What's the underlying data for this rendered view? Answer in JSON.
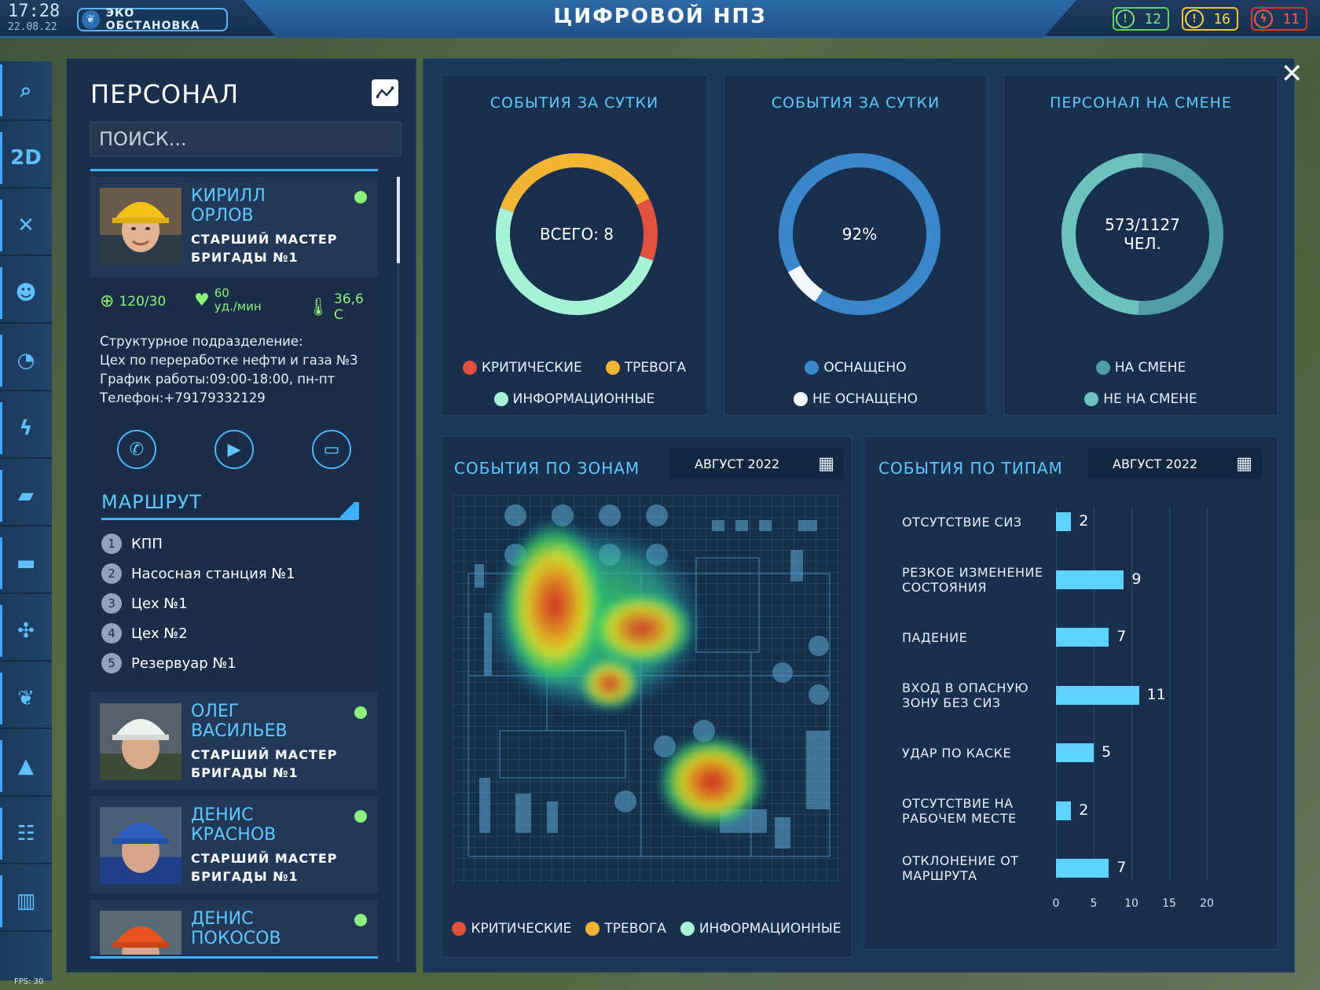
{
  "header": {
    "time": "17:28",
    "date": "22.08.22",
    "eco_button": "ЭКО ОБСТАНОВКА",
    "app_title": "ЦИФРОВОЙ НПЗ",
    "badges": [
      {
        "name": "info-badge",
        "value": "12",
        "color": "#5fd35a"
      },
      {
        "name": "warning-badge",
        "value": "16",
        "color": "#f2c230"
      },
      {
        "name": "critical-badge",
        "value": "11",
        "color": "#e2352e"
      }
    ]
  },
  "rail": {
    "items": [
      {
        "name": "search-icon",
        "glyph": "⌕"
      },
      {
        "name": "2d-view-toggle",
        "glyph": "2D"
      },
      {
        "name": "tools-icon",
        "glyph": "✕"
      },
      {
        "name": "personnel-icon",
        "glyph": "☻"
      },
      {
        "name": "pie-chart-icon",
        "glyph": "◔"
      },
      {
        "name": "lightning-icon",
        "glyph": "ϟ"
      },
      {
        "name": "camera-icon",
        "glyph": "▰"
      },
      {
        "name": "presentation-icon",
        "glyph": "▬"
      },
      {
        "name": "drone-icon",
        "glyph": "✣"
      },
      {
        "name": "leaf-icon",
        "glyph": "❦"
      },
      {
        "name": "alert-icon",
        "glyph": "▲"
      },
      {
        "name": "hierarchy-icon",
        "glyph": "☷"
      },
      {
        "name": "bar-chart-icon",
        "glyph": "▥"
      }
    ]
  },
  "fps": "FPS: 30",
  "personnel": {
    "title": "ПЕРСОНАЛ",
    "search_placeholder": "ПОИСК...",
    "expanded": {
      "first_name": "КИРИЛЛ",
      "last_name": "ОРЛОВ",
      "role_line1": "СТАРШИЙ МАСТЕР",
      "role_line2": "БРИГАДЫ №1",
      "pressure": "120/30",
      "pulse_value": "60",
      "pulse_unit": "уд./мин",
      "temperature": "36,6 С",
      "dept_label": "Структурное подразделение:",
      "dept_value": "Цех по переработке нефти и газа №3",
      "schedule_label": "График работы:",
      "schedule_value": "09:00-18:00, пн-пт",
      "phone_label": "Телефон:",
      "phone_value": "+79179332129",
      "route_title": "МАРШРУТ",
      "route": [
        {
          "n": "1",
          "label": "КПП"
        },
        {
          "n": "2",
          "label": "Насосная станция №1"
        },
        {
          "n": "3",
          "label": "Цех №1"
        },
        {
          "n": "4",
          "label": "Цех №2"
        },
        {
          "n": "5",
          "label": "Резервуар №1"
        }
      ]
    },
    "others": [
      {
        "first_name": "ОЛЕГ",
        "last_name": "ВАСИЛЬЕВ",
        "role_line1": "СТАРШИЙ МАСТЕР",
        "role_line2": "БРИГАДЫ №1"
      },
      {
        "first_name": "ДЕНИС",
        "last_name": "КРАСНОВ",
        "role_line1": "СТАРШИЙ МАСТЕР",
        "role_line2": "БРИГАДЫ №1"
      },
      {
        "first_name": "ДЕНИС",
        "last_name": "ПОКОСОВ",
        "role_line1": "",
        "role_line2": ""
      }
    ]
  },
  "donuts": [
    {
      "title": "СОБЫТИЯ ЗА СУТКИ",
      "center": "ВСЕГО: 8",
      "center2": "",
      "segments": [
        {
          "label": "КРИТИЧЕСКИЕ",
          "color": "#e2503e",
          "share": 0.125
        },
        {
          "label": "ИНФОРМАЦИОННЫЕ",
          "color": "#a6f2d6",
          "share": 0.5
        },
        {
          "label": "ТРЕВОГА",
          "color": "#f3b434",
          "share": 0.375
        }
      ]
    },
    {
      "title": "СОБЫТИЯ ЗА СУТКИ",
      "center": "92%",
      "center2": "",
      "segments": [
        {
          "label": "ОСНАЩЕНО",
          "color": "#3a87cc",
          "share": 0.92
        },
        {
          "label": "НЕ ОСНАЩЕНО",
          "color": "#f3f6fa",
          "share": 0.08
        }
      ]
    },
    {
      "title": "ПЕРСОНАЛ НА СМЕНЕ",
      "center": "573/1127",
      "center2": "ЧЕЛ.",
      "segments": [
        {
          "label": "НА СМЕНЕ",
          "color": "#4f9ea6",
          "share": 0.508
        },
        {
          "label": "НЕ НА СМЕНЕ",
          "color": "#6cc3be",
          "share": 0.492
        }
      ]
    }
  ],
  "zones": {
    "title": "СОБЫТИЯ ПО ЗОНАМ",
    "period": "АВГУСТ 2022",
    "legend": [
      {
        "label": "КРИТИЧЕСКИЕ",
        "color": "#e2503e"
      },
      {
        "label": "ТРЕВОГА",
        "color": "#f3b434"
      },
      {
        "label": "ИНФОРМАЦИОННЫЕ",
        "color": "#a6f2d6"
      }
    ]
  },
  "types": {
    "title": "СОБЫТИЯ ПО ТИПАМ",
    "period": "АВГУСТ 2022"
  },
  "chart_data": {
    "type": "bar",
    "title": "СОБЫТИЯ ПО ТИПАМ",
    "orientation": "horizontal",
    "categories": [
      "ОТСУТСТВИЕ СИЗ",
      "РЕЗКОЕ ИЗМЕНЕНИЕ СОСТОЯНИЯ",
      "ПАДЕНИЕ",
      "ВХОД В ОПАСНУЮ ЗОНУ БЕЗ СИЗ",
      "УДАР ПО КАСКЕ",
      "ОТСУТСТВИЕ НА РАБОЧЕМ МЕСТЕ",
      "ОТКЛОНЕНИЕ ОТ МАРШРУТА"
    ],
    "category_lines": [
      [
        "ОТСУТСТВИЕ СИЗ"
      ],
      [
        "РЕЗКОЕ ИЗМЕНЕНИЕ",
        "СОСТОЯНИЯ"
      ],
      [
        "ПАДЕНИЕ"
      ],
      [
        "ВХОД В ОПАСНУЮ",
        "ЗОНУ БЕЗ СИЗ"
      ],
      [
        "УДАР ПО КАСКЕ"
      ],
      [
        "ОТСУТСТВИЕ НА",
        "РАБОЧЕМ МЕСТЕ"
      ],
      [
        "ОТКЛОНЕНИЕ ОТ",
        "МАРШРУТА"
      ]
    ],
    "values": [
      2,
      9,
      7,
      11,
      5,
      2,
      7
    ],
    "xlim": [
      0,
      20
    ],
    "xticks": [
      "0",
      "5",
      "10",
      "15",
      "20"
    ],
    "grid": true,
    "bar_color": "#5fd1ff"
  }
}
